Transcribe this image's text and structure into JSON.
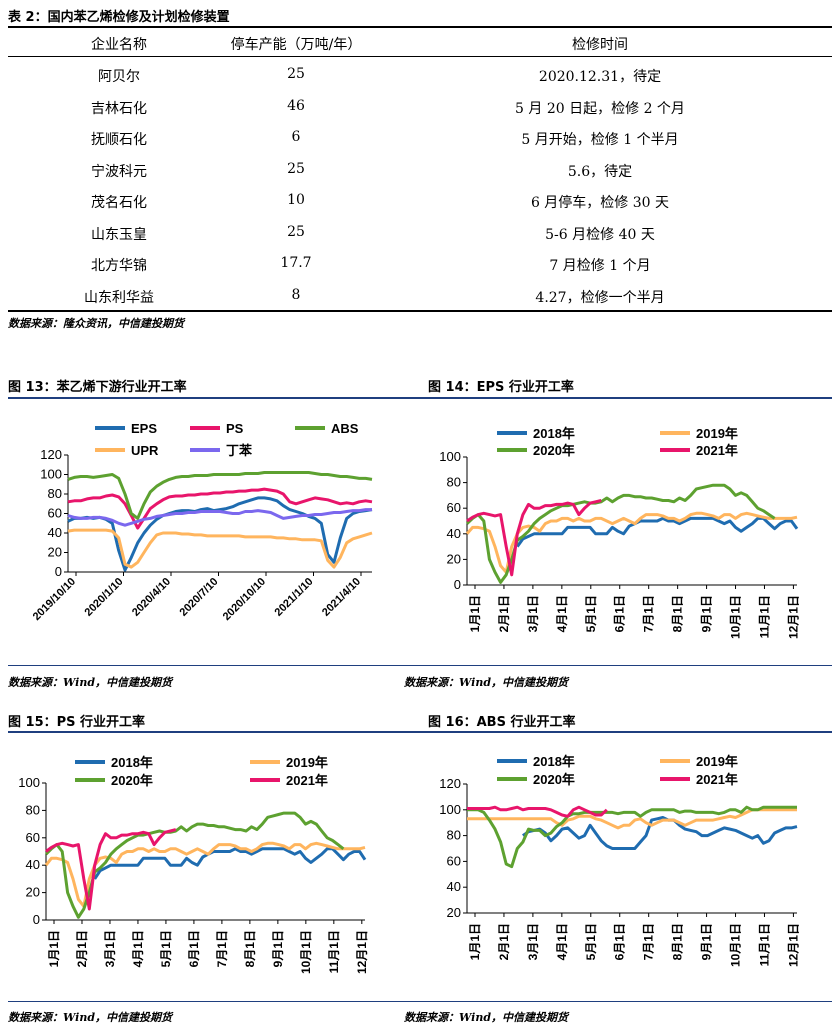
{
  "table": {
    "title": "表 2：国内苯乙烯检修及计划检修装置",
    "headers": [
      "企业名称",
      "停车产能（万吨/年）",
      "检修时间"
    ],
    "rows": [
      [
        "阿贝尔",
        "25",
        "2020.12.31，待定"
      ],
      [
        "吉林石化",
        "46",
        "5 月 20 日起，检修 2 个月"
      ],
      [
        "抚顺石化",
        "6",
        "5 月开始，检修 1 个半月"
      ],
      [
        "宁波科元",
        "25",
        "5.6，待定"
      ],
      [
        "茂名石化",
        "10",
        "6 月停车，检修 30 天"
      ],
      [
        "山东玉皇",
        "25",
        "5-6 月检修 40 天"
      ],
      [
        "北方华锦",
        "17.7",
        "7 月检修 1 个月"
      ],
      [
        "山东利华益",
        "8",
        "4.27，检修一个半月"
      ]
    ],
    "source": "数据来源：隆众资讯，中信建投期货"
  },
  "figures": {
    "fig13": {
      "title": "图 13：苯乙烯下游行业开工率",
      "source": "数据来源：Wind，中信建投期货"
    },
    "fig14": {
      "title": "图 14：EPS 行业开工率",
      "source": "数据来源：Wind，中信建投期货"
    },
    "fig15": {
      "title": "图 15：PS 行业开工率",
      "source": "数据来源：Wind，中信建投期货"
    },
    "fig16": {
      "title": "图 16：ABS 行业开工率",
      "source": "数据来源：Wind，中信建投期货"
    }
  },
  "chart_data": [
    {
      "id": "fig13",
      "type": "line",
      "x_tick_labels": [
        "2019/10/10",
        "2020/1/10",
        "2020/4/10",
        "2020/7/10",
        "2020/10/10",
        "2021/1/10",
        "2021/4/10"
      ],
      "ylim": [
        0,
        120
      ],
      "yticks": [
        0,
        20,
        40,
        60,
        80,
        100,
        120
      ],
      "legend": "top",
      "series": [
        {
          "name": "EPS",
          "color": "#1f6cb0",
          "values": [
            52,
            55,
            55,
            56,
            55,
            56,
            54,
            50,
            22,
            2,
            15,
            30,
            40,
            48,
            54,
            58,
            60,
            62,
            63,
            63,
            62,
            64,
            65,
            63,
            64,
            65,
            67,
            70,
            72,
            74,
            76,
            76,
            75,
            73,
            68,
            64,
            62,
            60,
            57,
            55,
            50,
            18,
            10,
            35,
            55,
            60,
            62,
            63,
            64
          ]
        },
        {
          "name": "PS",
          "color": "#e8156b",
          "values": [
            72,
            73,
            73,
            75,
            76,
            76,
            78,
            79,
            77,
            70,
            58,
            45,
            55,
            65,
            70,
            74,
            77,
            78,
            78,
            79,
            79,
            80,
            80,
            81,
            81,
            82,
            82,
            83,
            83,
            84,
            84,
            85,
            84,
            83,
            80,
            72,
            70,
            72,
            74,
            76,
            75,
            74,
            72,
            70,
            71,
            70,
            72,
            73,
            72
          ]
        },
        {
          "name": "ABS",
          "color": "#5da130",
          "values": [
            95,
            97,
            98,
            98,
            97,
            98,
            99,
            100,
            96,
            80,
            60,
            55,
            70,
            82,
            88,
            92,
            95,
            97,
            98,
            98,
            99,
            99,
            99,
            100,
            100,
            100,
            100,
            100,
            101,
            101,
            101,
            102,
            102,
            102,
            102,
            102,
            102,
            102,
            102,
            101,
            100,
            100,
            99,
            98,
            98,
            97,
            96,
            96,
            95
          ]
        },
        {
          "name": "UPR",
          "color": "#ffb55e",
          "values": [
            42,
            43,
            43,
            43,
            43,
            43,
            43,
            42,
            35,
            8,
            5,
            10,
            20,
            30,
            38,
            40,
            40,
            40,
            39,
            39,
            38,
            38,
            37,
            37,
            37,
            37,
            37,
            37,
            36,
            36,
            36,
            36,
            36,
            35,
            35,
            34,
            34,
            33,
            33,
            33,
            32,
            12,
            5,
            15,
            30,
            34,
            36,
            38,
            40
          ]
        },
        {
          "name": "丁苯",
          "color": "#7b68ee",
          "values": [
            58,
            56,
            55,
            55,
            56,
            56,
            55,
            53,
            50,
            48,
            50,
            52,
            54,
            55,
            57,
            58,
            59,
            60,
            60,
            61,
            61,
            62,
            62,
            62,
            62,
            61,
            60,
            60,
            62,
            62,
            63,
            62,
            61,
            58,
            55,
            56,
            57,
            58,
            58,
            59,
            59,
            60,
            61,
            61,
            62,
            63,
            63,
            64,
            64
          ]
        }
      ]
    },
    {
      "id": "fig14",
      "type": "line",
      "x_tick_labels": [
        "1月1日",
        "2月1日",
        "3月1日",
        "4月1日",
        "5月1日",
        "6月1日",
        "7月1日",
        "8月1日",
        "9月1日",
        "10月1日",
        "11月1日",
        "12月1日"
      ],
      "ylim": [
        0,
        100
      ],
      "yticks": [
        0,
        20,
        40,
        60,
        80,
        100
      ],
      "legend": "top",
      "series": [
        {
          "name": "2018年",
          "color": "#1f6cb0",
          "values": [
            null,
            null,
            null,
            null,
            null,
            null,
            null,
            null,
            null,
            30,
            36,
            38,
            40,
            40,
            40,
            40,
            40,
            40,
            45,
            45,
            45,
            45,
            45,
            40,
            40,
            40,
            45,
            42,
            40,
            46,
            48,
            50,
            50,
            50,
            50,
            52,
            50,
            50,
            48,
            50,
            52,
            52,
            52,
            52,
            52,
            50,
            48,
            50,
            45,
            42,
            45,
            48,
            52,
            52,
            48,
            44,
            48,
            50,
            50,
            44
          ]
        },
        {
          "name": "2019年",
          "color": "#ffb55e",
          "values": [
            40,
            45,
            45,
            44,
            42,
            30,
            15,
            10,
            30,
            40,
            45,
            46,
            45,
            42,
            48,
            50,
            50,
            52,
            52,
            50,
            52,
            50,
            50,
            52,
            52,
            50,
            48,
            50,
            52,
            50,
            48,
            52,
            55,
            55,
            55,
            54,
            52,
            52,
            50,
            52,
            55,
            56,
            56,
            55,
            54,
            52,
            55,
            55,
            52,
            55,
            56,
            55,
            54,
            53,
            52,
            52,
            52,
            52,
            52,
            53
          ]
        },
        {
          "name": "2020年",
          "color": "#5da130",
          "values": [
            48,
            52,
            55,
            50,
            20,
            10,
            2,
            8,
            20,
            35,
            38,
            42,
            48,
            52,
            55,
            58,
            60,
            62,
            62,
            63,
            64,
            65,
            64,
            64,
            65,
            68,
            65,
            68,
            70,
            70,
            69,
            69,
            68,
            68,
            67,
            66,
            66,
            65,
            68,
            66,
            70,
            75,
            76,
            77,
            78,
            78,
            78,
            75,
            70,
            72,
            70,
            65,
            60,
            58,
            55,
            52
          ]
        },
        {
          "name": "2021年",
          "color": "#e8156b",
          "values": [
            50,
            53,
            55,
            56,
            55,
            54,
            55,
            30,
            8,
            40,
            55,
            63,
            60,
            60,
            62,
            62,
            63,
            63,
            64,
            63,
            55,
            60,
            64,
            65,
            66
          ]
        }
      ]
    },
    {
      "id": "fig15",
      "type": "line",
      "x_tick_labels": [
        "1月1日",
        "2月1日",
        "3月1日",
        "4月1日",
        "5月1日",
        "6月1日",
        "7月1日",
        "8月1日",
        "9月1日",
        "10月1日",
        "11月1日",
        "12月1日"
      ],
      "ylim": [
        0,
        100
      ],
      "yticks": [
        0,
        20,
        40,
        60,
        80,
        100
      ],
      "legend": "top",
      "series": [
        {
          "name": "2018年",
          "color": "#1f6cb0",
          "values": [
            null,
            null,
            null,
            null,
            null,
            null,
            null,
            null,
            null,
            30,
            36,
            38,
            40,
            40,
            40,
            40,
            40,
            40,
            45,
            45,
            45,
            45,
            45,
            40,
            40,
            40,
            45,
            42,
            40,
            46,
            48,
            50,
            50,
            50,
            50,
            52,
            50,
            50,
            48,
            50,
            52,
            52,
            52,
            52,
            52,
            50,
            48,
            50,
            45,
            42,
            45,
            48,
            52,
            52,
            48,
            44,
            48,
            50,
            50,
            44
          ]
        },
        {
          "name": "2019年",
          "color": "#ffb55e",
          "values": [
            40,
            45,
            45,
            44,
            42,
            30,
            15,
            10,
            30,
            40,
            45,
            46,
            45,
            42,
            48,
            50,
            50,
            52,
            52,
            50,
            52,
            50,
            50,
            52,
            52,
            50,
            48,
            50,
            52,
            50,
            48,
            52,
            55,
            55,
            55,
            54,
            52,
            52,
            50,
            52,
            55,
            56,
            56,
            55,
            54,
            52,
            55,
            55,
            52,
            55,
            56,
            55,
            54,
            53,
            52,
            52,
            52,
            52,
            52,
            53
          ]
        },
        {
          "name": "2020年",
          "color": "#5da130",
          "values": [
            48,
            52,
            55,
            50,
            20,
            10,
            2,
            8,
            20,
            35,
            38,
            42,
            48,
            52,
            55,
            58,
            60,
            62,
            62,
            63,
            64,
            65,
            64,
            64,
            65,
            68,
            65,
            68,
            70,
            70,
            69,
            69,
            68,
            68,
            67,
            66,
            66,
            65,
            68,
            66,
            70,
            75,
            76,
            77,
            78,
            78,
            78,
            75,
            70,
            72,
            70,
            65,
            60,
            58,
            55,
            52
          ]
        },
        {
          "name": "2021年",
          "color": "#e8156b",
          "values": [
            50,
            53,
            55,
            56,
            55,
            54,
            55,
            30,
            8,
            40,
            55,
            63,
            60,
            60,
            62,
            62,
            63,
            63,
            64,
            63,
            55,
            60,
            64,
            65,
            66
          ]
        }
      ]
    },
    {
      "id": "fig16",
      "type": "line",
      "x_tick_labels": [
        "1月1日",
        "2月1日",
        "3月1日",
        "4月1日",
        "5月1日",
        "6月1日",
        "7月1日",
        "8月1日",
        "9月1日",
        "10月1日",
        "11月1日",
        "12月1日"
      ],
      "ylim": [
        20,
        120
      ],
      "yticks": [
        20,
        40,
        60,
        80,
        100,
        120
      ],
      "legend": "top",
      "series": [
        {
          "name": "2018年",
          "color": "#1f6cb0",
          "values": [
            null,
            null,
            null,
            null,
            null,
            null,
            null,
            null,
            null,
            null,
            80,
            83,
            84,
            85,
            82,
            76,
            80,
            85,
            86,
            82,
            78,
            80,
            88,
            82,
            76,
            72,
            70,
            70,
            70,
            70,
            70,
            75,
            80,
            92,
            93,
            94,
            92,
            92,
            88,
            85,
            84,
            83,
            80,
            80,
            82,
            84,
            86,
            85,
            84,
            82,
            80,
            78,
            80,
            74,
            76,
            82,
            84,
            86,
            86,
            87
          ]
        },
        {
          "name": "2019年",
          "color": "#ffb55e",
          "values": [
            93,
            93,
            93,
            93,
            93,
            93,
            93,
            93,
            93,
            93,
            93,
            93,
            93,
            93,
            93,
            93,
            90,
            88,
            92,
            93,
            95,
            95,
            95,
            93,
            92,
            90,
            88,
            86,
            88,
            88,
            92,
            93,
            90,
            88,
            90,
            92,
            92,
            92,
            90,
            88,
            90,
            92,
            92,
            92,
            92,
            93,
            94,
            95,
            94,
            96,
            98,
            100,
            100,
            100,
            100,
            100,
            100,
            100,
            100,
            100
          ]
        },
        {
          "name": "2020年",
          "color": "#5da130",
          "values": [
            100,
            100,
            100,
            98,
            92,
            85,
            75,
            58,
            56,
            70,
            75,
            85,
            84,
            84,
            80,
            82,
            87,
            90,
            95,
            97,
            97,
            98,
            98,
            98,
            98,
            98,
            98,
            97,
            98,
            98,
            98,
            95,
            98,
            100,
            100,
            100,
            100,
            100,
            98,
            99,
            99,
            98,
            98,
            98,
            98,
            97,
            98,
            100,
            100,
            98,
            102,
            100,
            100,
            102,
            102,
            102,
            102,
            102,
            102,
            102
          ]
        },
        {
          "name": "2021年",
          "color": "#e8156b",
          "values": [
            101,
            101,
            101,
            101,
            101,
            102,
            100,
            100,
            101,
            102,
            100,
            101,
            101,
            101,
            101,
            100,
            98,
            96,
            95,
            100,
            102,
            100,
            98,
            96,
            96,
            100
          ]
        }
      ]
    }
  ]
}
